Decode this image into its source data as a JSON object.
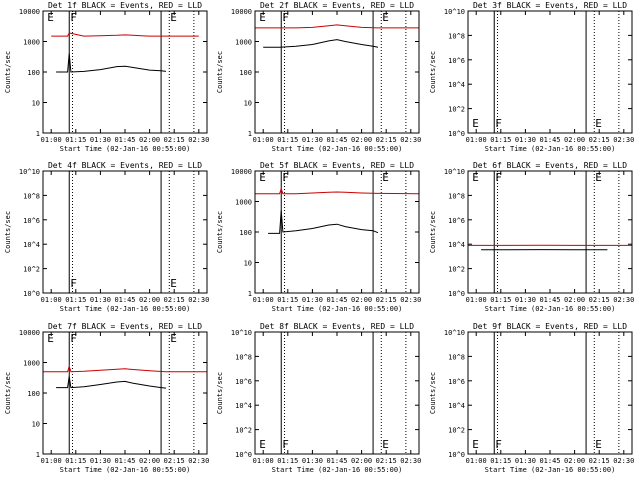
{
  "figure": {
    "x_axis_label": "Start Time (02-Jan-16 00:55:00)",
    "y_axis_label": "Counts/sec",
    "x_tick_labels": [
      "01:00",
      "01:15",
      "01:30",
      "01:45",
      "02:00",
      "02:15",
      "02:30"
    ],
    "colors": {
      "events": "#000000",
      "lld": "#cc0000",
      "frame": "#000000"
    }
  },
  "chart_data": [
    {
      "type": "line",
      "title": "Det 1f BLACK = Events, RED = LLD",
      "xlabel": "Start Time (02-Jan-16 00:55:00)",
      "ylabel": "Counts/sec",
      "xlim": [
        "00:55",
        "02:35"
      ],
      "y_scale": "log",
      "ylim": [
        1,
        10000
      ],
      "y_tick_labels": [
        "1",
        "10",
        "100",
        "1000",
        "10000"
      ],
      "vertical_solid_lines": [
        "01:11",
        "02:07"
      ],
      "vertical_dotted_lines": [
        "01:13",
        "02:12",
        "02:27"
      ],
      "markers": [
        {
          "text": "E",
          "time": "00:57",
          "position": "top"
        },
        {
          "text": "F",
          "time": "01:11",
          "position": "top"
        },
        {
          "text": "E",
          "time": "02:12",
          "position": "top"
        }
      ],
      "series": [
        {
          "x": [
            "01:00",
            "01:10",
            "01:11",
            "01:20",
            "01:30",
            "01:40",
            "01:45",
            "01:50",
            "01:55",
            "02:00",
            "02:10",
            "02:30"
          ],
          "values": [
            1500,
            1500,
            1900,
            1500,
            1550,
            1600,
            1650,
            1600,
            1550,
            1500,
            1500,
            1500
          ],
          "color": "red"
        },
        {
          "x": [
            "01:03",
            "01:10",
            "01:11",
            "01:12",
            "01:20",
            "01:30",
            "01:40",
            "01:45",
            "01:50",
            "02:00",
            "02:07",
            "02:10"
          ],
          "values": [
            100,
            100,
            400,
            100,
            105,
            120,
            150,
            155,
            140,
            115,
            110,
            105
          ],
          "color": "black"
        }
      ]
    },
    {
      "type": "line",
      "title": "Det 2f BLACK = Events, RED = LLD",
      "xlabel": "Start Time (02-Jan-16 00:55:00)",
      "ylabel": "Counts/sec",
      "xlim": [
        "00:55",
        "02:35"
      ],
      "y_scale": "log",
      "ylim": [
        1,
        10000
      ],
      "y_tick_labels": [
        "1",
        "10",
        "100",
        "1000",
        "10000"
      ],
      "vertical_solid_lines": [
        "01:11",
        "02:07"
      ],
      "vertical_dotted_lines": [
        "01:13",
        "02:12",
        "02:27"
      ],
      "markers": [
        {
          "text": "E",
          "time": "00:57",
          "position": "top"
        },
        {
          "text": "F",
          "time": "01:11",
          "position": "top"
        },
        {
          "text": "E",
          "time": "02:12",
          "position": "top"
        }
      ],
      "series": [
        {
          "x": [
            "00:55",
            "01:10",
            "01:20",
            "01:30",
            "01:40",
            "01:45",
            "01:50",
            "02:00",
            "02:10",
            "02:35"
          ],
          "values": [
            2800,
            2800,
            2800,
            2900,
            3300,
            3500,
            3300,
            2900,
            2800,
            2800
          ],
          "color": "red"
        },
        {
          "x": [
            "01:00",
            "01:10",
            "01:20",
            "01:30",
            "01:40",
            "01:45",
            "01:50",
            "02:00",
            "02:07",
            "02:10"
          ],
          "values": [
            650,
            650,
            700,
            800,
            1050,
            1150,
            1000,
            800,
            700,
            650
          ],
          "color": "black"
        }
      ]
    },
    {
      "type": "line",
      "title": "Det 3f BLACK = Events, RED = LLD",
      "xlabel": "Start Time (02-Jan-16 00:55:00)",
      "ylabel": "Counts/sec",
      "xlim": [
        "00:55",
        "02:35"
      ],
      "y_scale": "log",
      "ylim": [
        1,
        10000000000
      ],
      "y_tick_labels": [
        "10^0",
        "10^2",
        "10^4",
        "10^6",
        "10^8",
        "10^10"
      ],
      "vertical_solid_lines": [
        "01:11",
        "02:07"
      ],
      "vertical_dotted_lines": [
        "01:13",
        "02:12",
        "02:27"
      ],
      "markers": [
        {
          "text": "E",
          "time": "00:57",
          "position": "bottom"
        },
        {
          "text": "F",
          "time": "01:11",
          "position": "bottom"
        },
        {
          "text": "E",
          "time": "02:12",
          "position": "bottom"
        }
      ],
      "series": []
    },
    {
      "type": "line",
      "title": "Det 4f BLACK = Events, RED = LLD",
      "xlabel": "Start Time (02-Jan-16 00:55:00)",
      "ylabel": "Counts/sec",
      "xlim": [
        "00:55",
        "02:35"
      ],
      "y_scale": "log",
      "ylim": [
        1,
        10000000000
      ],
      "y_tick_labels": [
        "10^0",
        "10^2",
        "10^4",
        "10^6",
        "10^8",
        "10^10"
      ],
      "vertical_solid_lines": [
        "01:11",
        "02:07"
      ],
      "vertical_dotted_lines": [
        "01:13",
        "02:12",
        "02:27"
      ],
      "markers": [
        {
          "text": "F",
          "time": "01:11",
          "position": "bottom"
        },
        {
          "text": "E",
          "time": "02:12",
          "position": "bottom"
        }
      ],
      "series": []
    },
    {
      "type": "line",
      "title": "Det 5f BLACK = Events, RED = LLD",
      "xlabel": "Start Time (02-Jan-16 00:55:00)",
      "ylabel": "Counts/sec",
      "xlim": [
        "00:55",
        "02:35"
      ],
      "y_scale": "log",
      "ylim": [
        1,
        10000
      ],
      "y_tick_labels": [
        "1",
        "10",
        "100",
        "1000",
        "10000"
      ],
      "vertical_solid_lines": [
        "01:11",
        "02:07"
      ],
      "vertical_dotted_lines": [
        "01:13",
        "02:12",
        "02:27"
      ],
      "markers": [
        {
          "text": "E",
          "time": "00:57",
          "position": "top"
        },
        {
          "text": "F",
          "time": "01:11",
          "position": "top"
        },
        {
          "text": "E",
          "time": "02:12",
          "position": "top"
        }
      ],
      "series": [
        {
          "x": [
            "00:55",
            "01:10",
            "01:11",
            "01:12",
            "01:20",
            "01:30",
            "01:40",
            "01:45",
            "01:50",
            "02:00",
            "02:10",
            "02:35"
          ],
          "values": [
            1800,
            1800,
            2600,
            1800,
            1800,
            1900,
            2000,
            2050,
            2000,
            1900,
            1850,
            1800
          ],
          "color": "red"
        },
        {
          "x": [
            "01:03",
            "01:10",
            "01:11",
            "01:12",
            "01:20",
            "01:30",
            "01:40",
            "01:45",
            "01:50",
            "02:00",
            "02:07",
            "02:10"
          ],
          "values": [
            90,
            90,
            500,
            100,
            110,
            130,
            170,
            180,
            150,
            120,
            110,
            95
          ],
          "color": "black"
        }
      ]
    },
    {
      "type": "line",
      "title": "Det 6f BLACK = Events, RED = LLD",
      "xlabel": "Start Time (02-Jan-16 00:55:00)",
      "ylabel": "Counts/sec",
      "xlim": [
        "00:55",
        "02:35"
      ],
      "y_scale": "log",
      "ylim": [
        1,
        10000000000
      ],
      "y_tick_labels": [
        "10^0",
        "10^2",
        "10^4",
        "10^6",
        "10^8",
        "10^10"
      ],
      "vertical_solid_lines": [
        "01:11",
        "02:07"
      ],
      "vertical_dotted_lines": [
        "01:13",
        "02:12",
        "02:27"
      ],
      "markers": [
        {
          "text": "E",
          "time": "00:57",
          "position": "top"
        },
        {
          "text": "F",
          "time": "01:11",
          "position": "top"
        },
        {
          "text": "E",
          "time": "02:12",
          "position": "top"
        }
      ],
      "series": [
        {
          "x": [
            "00:55",
            "01:20",
            "01:40",
            "02:00",
            "02:20",
            "02:35"
          ],
          "values": [
            8000,
            8000,
            8200,
            8000,
            8000,
            8000
          ],
          "color": "red"
        },
        {
          "x": [
            "01:03",
            "01:20",
            "01:40",
            "02:00",
            "02:20"
          ],
          "values": [
            3500,
            3500,
            3600,
            3500,
            3500
          ],
          "color": "black"
        }
      ]
    },
    {
      "type": "line",
      "title": "Det 7f BLACK = Events, RED = LLD",
      "xlabel": "Start Time (02-Jan-16 00:55:00)",
      "ylabel": "Counts/sec",
      "xlim": [
        "00:55",
        "02:35"
      ],
      "y_scale": "log",
      "ylim": [
        1,
        10000
      ],
      "y_tick_labels": [
        "1",
        "10",
        "100",
        "1000",
        "10000"
      ],
      "vertical_solid_lines": [
        "01:11",
        "02:07"
      ],
      "vertical_dotted_lines": [
        "01:13",
        "02:12",
        "02:27"
      ],
      "markers": [
        {
          "text": "E",
          "time": "00:57",
          "position": "top"
        },
        {
          "text": "F",
          "time": "01:11",
          "position": "top"
        },
        {
          "text": "E",
          "time": "02:12",
          "position": "top"
        }
      ],
      "series": [
        {
          "x": [
            "00:55",
            "01:10",
            "01:11",
            "01:12",
            "01:20",
            "01:30",
            "01:40",
            "01:45",
            "01:50",
            "02:00",
            "02:10",
            "02:35"
          ],
          "values": [
            500,
            500,
            750,
            500,
            520,
            560,
            600,
            620,
            590,
            540,
            500,
            500
          ],
          "color": "red"
        },
        {
          "x": [
            "01:03",
            "01:10",
            "01:11",
            "01:12",
            "01:20",
            "01:30",
            "01:40",
            "01:45",
            "01:50",
            "02:00",
            "02:07",
            "02:10"
          ],
          "values": [
            150,
            150,
            350,
            150,
            160,
            190,
            230,
            240,
            210,
            170,
            150,
            145
          ],
          "color": "black"
        }
      ]
    },
    {
      "type": "line",
      "title": "Det 8f BLACK = Events, RED = LLD",
      "xlabel": "Start Time (02-Jan-16 00:55:00)",
      "ylabel": "Counts/sec",
      "xlim": [
        "00:55",
        "02:35"
      ],
      "y_scale": "log",
      "ylim": [
        1,
        10000000000
      ],
      "y_tick_labels": [
        "10^0",
        "10^2",
        "10^4",
        "10^6",
        "10^8",
        "10^10"
      ],
      "vertical_solid_lines": [
        "01:11",
        "02:07"
      ],
      "vertical_dotted_lines": [
        "01:13",
        "02:12",
        "02:27"
      ],
      "markers": [
        {
          "text": "E",
          "time": "00:57",
          "position": "bottom"
        },
        {
          "text": "F",
          "time": "01:11",
          "position": "bottom"
        },
        {
          "text": "E",
          "time": "02:12",
          "position": "bottom"
        }
      ],
      "series": []
    },
    {
      "type": "line",
      "title": "Det 9f BLACK = Events, RED = LLD",
      "xlabel": "Start Time (02-Jan-16 00:55:00)",
      "ylabel": "Counts/sec",
      "xlim": [
        "00:55",
        "02:35"
      ],
      "y_scale": "log",
      "ylim": [
        1,
        10000000000
      ],
      "y_tick_labels": [
        "10^0",
        "10^2",
        "10^4",
        "10^6",
        "10^8",
        "10^10"
      ],
      "vertical_solid_lines": [
        "01:11",
        "02:07"
      ],
      "vertical_dotted_lines": [
        "01:13",
        "02:12",
        "02:27"
      ],
      "markers": [
        {
          "text": "E",
          "time": "00:57",
          "position": "bottom"
        },
        {
          "text": "F",
          "time": "01:11",
          "position": "bottom"
        },
        {
          "text": "E",
          "time": "02:12",
          "position": "bottom"
        }
      ],
      "series": []
    }
  ]
}
